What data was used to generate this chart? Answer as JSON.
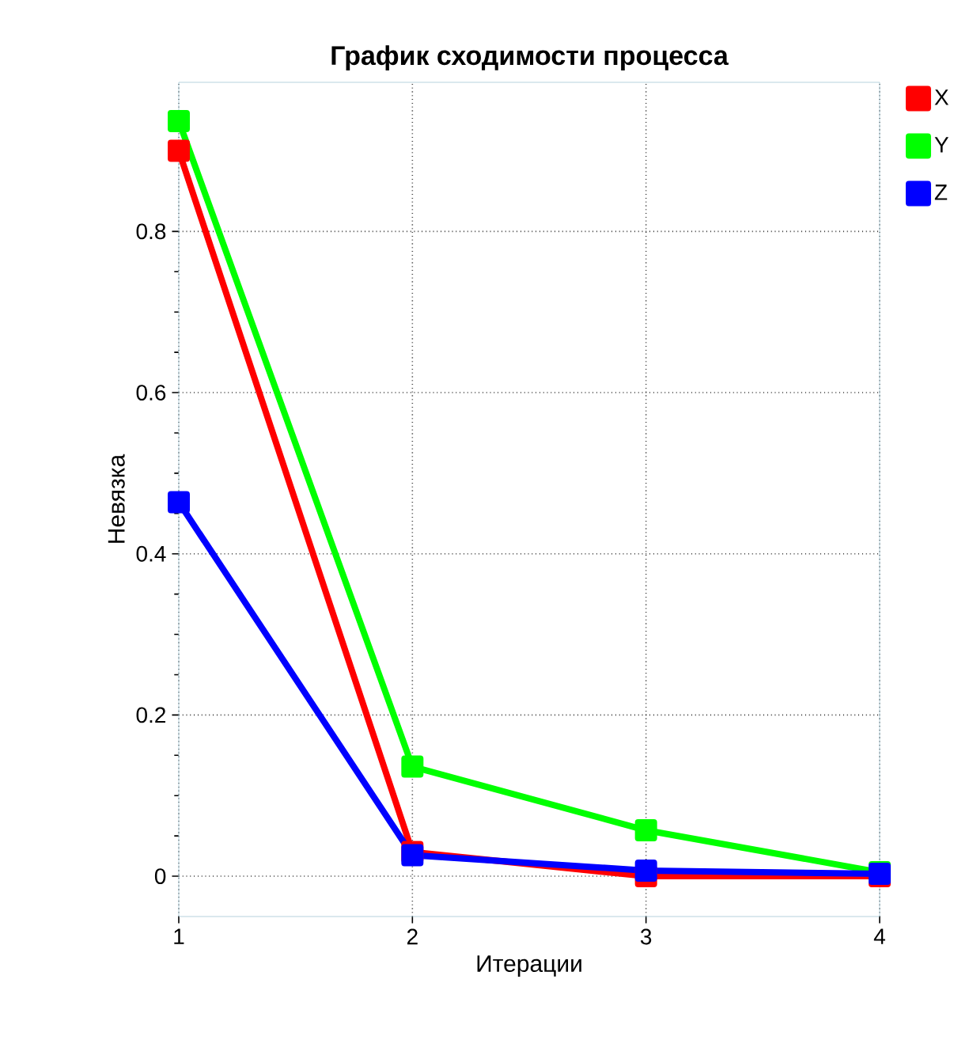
{
  "chart_data": {
    "type": "line",
    "title": "График сходимости процесса",
    "xlabel": "Итерации",
    "ylabel": "Невязка",
    "x": [
      1,
      2,
      3,
      4
    ],
    "series": [
      {
        "name": "X",
        "color": "#ff0000",
        "values": [
          0.9,
          0.03,
          0.0,
          0.0
        ]
      },
      {
        "name": "Y",
        "color": "#00ff00",
        "values": [
          0.937,
          0.136,
          0.057,
          0.005
        ]
      },
      {
        "name": "Z",
        "color": "#0000ff",
        "values": [
          0.464,
          0.026,
          0.007,
          0.003
        ]
      }
    ],
    "xlim": [
      1,
      4
    ],
    "ylim": [
      -0.05,
      0.985
    ],
    "xticks": [
      1,
      2,
      3,
      4
    ],
    "yticks": [
      0,
      0.2,
      0.4,
      0.6,
      0.8
    ],
    "grid": true,
    "legend": "right",
    "marker": "square",
    "line_style": "solid"
  }
}
